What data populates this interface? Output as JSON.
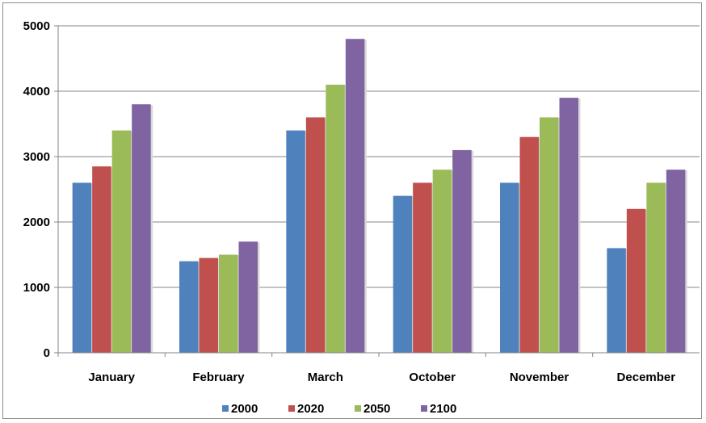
{
  "chart_data": {
    "type": "bar",
    "title": "",
    "xlabel": "",
    "ylabel": "",
    "categories": [
      "January",
      "February",
      "March",
      "October",
      "November",
      "December"
    ],
    "series": [
      {
        "name": "2000",
        "color": "#4f81bd",
        "values": [
          2600,
          1400,
          3400,
          2400,
          2600,
          1600
        ]
      },
      {
        "name": "2020",
        "color": "#c0504d",
        "values": [
          2850,
          1450,
          3600,
          2600,
          3300,
          2200
        ]
      },
      {
        "name": "2050",
        "color": "#9bbb59",
        "values": [
          3400,
          1500,
          4100,
          2800,
          3600,
          2600
        ]
      },
      {
        "name": "2100",
        "color": "#8064a2",
        "values": [
          3800,
          1700,
          4800,
          3100,
          3900,
          2800
        ]
      }
    ],
    "ylim": [
      0,
      5000
    ],
    "yticks": [
      0,
      1000,
      2000,
      3000,
      4000,
      5000
    ],
    "grid": true,
    "legend_position": "bottom"
  }
}
